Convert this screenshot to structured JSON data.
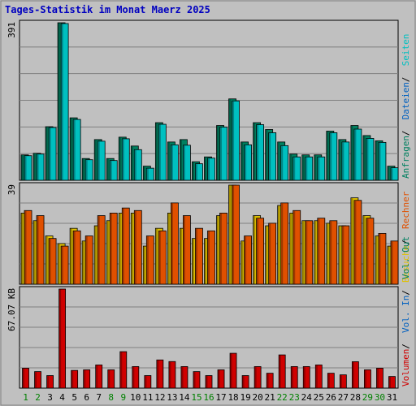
{
  "title": "Tages-Statistik im Monat Maerz 2025",
  "colors": {
    "background": "#c0c0c0",
    "title": "#0000c0",
    "anfragen": "#008060",
    "dateien": "#0060c0",
    "seiten": "#00c0c0",
    "besuche": "#e0c000",
    "rechner": "#e05000",
    "volumen": "#d00000",
    "weekday": "#000000",
    "weekend": "#008000"
  },
  "chart_data": [
    {
      "type": "bar",
      "name": "hits-files-pages",
      "max_label": "391",
      "ylim": [
        0,
        391
      ],
      "side_labels": [
        {
          "text": "Anfragen",
          "color": "#008060"
        },
        {
          "text": "Dateien",
          "color": "#0060c0"
        },
        {
          "text": "Seiten",
          "color": "#00c0c0"
        }
      ],
      "categories": [
        "1",
        "2",
        "3",
        "4",
        "5",
        "6",
        "7",
        "8",
        "9",
        "10",
        "11",
        "12",
        "13",
        "14",
        "15",
        "16",
        "17",
        "18",
        "19",
        "20",
        "21",
        "22",
        "23",
        "24",
        "25",
        "26",
        "27",
        "28",
        "29",
        "30",
        "31"
      ],
      "series": [
        {
          "name": "Anfragen",
          "color": "#008060",
          "values": [
            63,
            67,
            133,
            391,
            155,
            54,
            101,
            54,
            107,
            85,
            35,
            143,
            95,
            101,
            46,
            58,
            136,
            202,
            95,
            143,
            126,
            95,
            65,
            63,
            63,
            122,
            101,
            136,
            111,
            98,
            35
          ]
        },
        {
          "name": "Dateien",
          "color": "#00c0c0",
          "values": [
            61,
            65,
            131,
            389,
            151,
            51,
            97,
            49,
            103,
            76,
            30,
            139,
            88,
            87,
            41,
            55,
            132,
            197,
            88,
            138,
            118,
            86,
            58,
            58,
            58,
            118,
            95,
            127,
            104,
            94,
            31
          ]
        }
      ]
    },
    {
      "type": "bar",
      "name": "visits-hosts",
      "max_label": "39",
      "ylim": [
        0,
        39
      ],
      "side_labels": [
        {
          "text": "Besuche",
          "color": "#e0c000"
        },
        {
          "text": "Rechner",
          "color": "#e05000"
        }
      ],
      "categories": [
        "1",
        "2",
        "3",
        "4",
        "5",
        "6",
        "7",
        "8",
        "9",
        "10",
        "11",
        "12",
        "13",
        "14",
        "15",
        "16",
        "17",
        "18",
        "19",
        "20",
        "21",
        "22",
        "23",
        "24",
        "25",
        "26",
        "27",
        "28",
        "29",
        "30",
        "31"
      ],
      "series": [
        {
          "name": "Besuche",
          "color": "#e0c000",
          "values": [
            28,
            25,
            19,
            16,
            22,
            17,
            23,
            25,
            28,
            28,
            15,
            22,
            28,
            22,
            18,
            18,
            27,
            39,
            17,
            27,
            23,
            31,
            28,
            25,
            25,
            24,
            23,
            34,
            27,
            19,
            15
          ]
        },
        {
          "name": "Rechner",
          "color": "#e05000",
          "values": [
            29,
            27,
            18,
            15,
            21,
            19,
            27,
            28,
            30,
            29,
            19,
            21,
            32,
            27,
            22,
            21,
            28,
            39,
            19,
            26,
            24,
            32,
            29,
            25,
            26,
            25,
            23,
            33,
            26,
            20,
            17
          ]
        }
      ]
    },
    {
      "type": "bar",
      "name": "volume",
      "max_label": "67.07 KB",
      "ylim": [
        0,
        67.07
      ],
      "side_labels": [
        {
          "text": "Volumen",
          "color": "#d00000"
        },
        {
          "text": "Vol. In",
          "color": "#0060c0"
        },
        {
          "text": "Vol. Out",
          "color": "#008060"
        }
      ],
      "categories": [
        "1",
        "2",
        "3",
        "4",
        "5",
        "6",
        "7",
        "8",
        "9",
        "10",
        "11",
        "12",
        "13",
        "14",
        "15",
        "16",
        "17",
        "18",
        "19",
        "20",
        "21",
        "22",
        "23",
        "24",
        "25",
        "26",
        "27",
        "28",
        "29",
        "30",
        "31"
      ],
      "series": [
        {
          "name": "Volumen",
          "color": "#d00000",
          "values": [
            13.5,
            11.2,
            8.5,
            67.07,
            12.0,
            12.4,
            15.7,
            12.4,
            24.7,
            14.6,
            8.5,
            19.1,
            18.0,
            14.6,
            11.2,
            8.5,
            12.4,
            23.6,
            8.5,
            14.6,
            10.1,
            22.5,
            14.6,
            14.6,
            15.7,
            10.1,
            9.0,
            17.9,
            12.4,
            13.5,
            7.9
          ]
        }
      ]
    }
  ],
  "x_labels": {
    "days": [
      "1",
      "2",
      "3",
      "4",
      "5",
      "6",
      "7",
      "8",
      "9",
      "10",
      "11",
      "12",
      "13",
      "14",
      "15",
      "16",
      "17",
      "18",
      "19",
      "20",
      "21",
      "22",
      "23",
      "24",
      "25",
      "26",
      "27",
      "28",
      "29",
      "30",
      "31"
    ],
    "weekend": [
      1,
      2,
      8,
      9,
      15,
      16,
      22,
      23,
      29,
      30
    ]
  }
}
